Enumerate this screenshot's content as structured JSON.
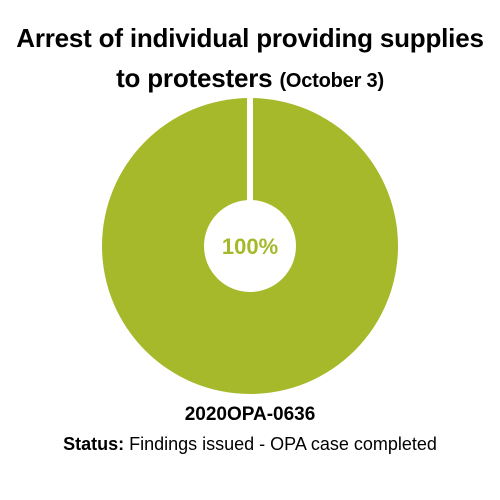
{
  "header": {
    "title_main_line1": "Arrest of individual providing supplies",
    "title_main_line2": "to protesters",
    "title_date": "(October 3)"
  },
  "footer": {
    "case_id": "2020OPA-0636",
    "status_label": "Status:",
    "status_value": "Findings issued - OPA case completed"
  },
  "colors": {
    "accent": "#a5b92a",
    "background": "#ffffff"
  },
  "chart_data": {
    "type": "pie",
    "title": "Arrest of individual providing supplies to protesters (October 3)",
    "series": [
      {
        "values": [
          100
        ]
      }
    ],
    "center_label": "100%"
  }
}
